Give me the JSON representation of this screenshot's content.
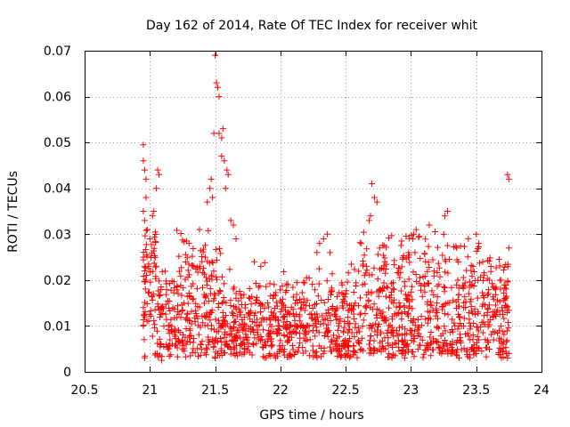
{
  "chart_data": {
    "type": "scatter",
    "title": "Day 162 of 2014, Rate Of TEC Index for receiver whit",
    "xlabel": "GPS time / hours",
    "ylabel": "ROTI / TECUs",
    "xlim": [
      20.5,
      24
    ],
    "ylim": [
      0,
      0.07
    ],
    "xticks": [
      20.5,
      21,
      21.5,
      22,
      22.5,
      23,
      23.5,
      24
    ],
    "xtick_labels": [
      "20.5",
      "21",
      "21.5",
      "22",
      "22.5",
      "23",
      "23.5",
      "24"
    ],
    "yticks": [
      0,
      0.01,
      0.02,
      0.03,
      0.04,
      0.05,
      0.06,
      0.07
    ],
    "ytick_labels": [
      "0",
      "0.01",
      "0.02",
      "0.03",
      "0.04",
      "0.05",
      "0.06",
      "0.07"
    ],
    "grid": true,
    "marker": "+",
    "color": "#ff0000",
    "series": [
      {
        "name": "ROTI",
        "x_range": [
          20.95,
          23.75
        ],
        "points": [
          [
            20.95,
            0.0495
          ],
          [
            20.95,
            0.046
          ],
          [
            20.96,
            0.044
          ],
          [
            20.97,
            0.042
          ],
          [
            20.97,
            0.038
          ],
          [
            20.95,
            0.035
          ],
          [
            20.96,
            0.033
          ],
          [
            20.98,
            0.031
          ],
          [
            21.0,
            0.029
          ],
          [
            21.02,
            0.034
          ],
          [
            21.03,
            0.035
          ],
          [
            20.95,
            0.025
          ],
          [
            20.96,
            0.022
          ],
          [
            20.97,
            0.02
          ],
          [
            20.99,
            0.023
          ],
          [
            20.95,
            0.014
          ],
          [
            20.95,
            0.01
          ],
          [
            20.96,
            0.012
          ],
          [
            21.06,
            0.044
          ],
          [
            21.07,
            0.043
          ],
          [
            21.05,
            0.04
          ],
          [
            21.09,
            0.0025
          ],
          [
            21.14,
            0.005
          ],
          [
            21.3,
            0.028
          ],
          [
            21.38,
            0.031
          ],
          [
            21.44,
            0.037
          ],
          [
            21.46,
            0.04
          ],
          [
            21.47,
            0.042
          ],
          [
            21.48,
            0.038
          ],
          [
            21.49,
            0.052
          ],
          [
            21.5,
            0.069
          ],
          [
            21.51,
            0.063
          ],
          [
            21.52,
            0.062
          ],
          [
            21.53,
            0.06
          ],
          [
            21.53,
            0.052
          ],
          [
            21.55,
            0.051
          ],
          [
            21.56,
            0.053
          ],
          [
            21.55,
            0.047
          ],
          [
            21.57,
            0.046
          ],
          [
            21.59,
            0.044
          ],
          [
            21.6,
            0.043
          ],
          [
            21.58,
            0.04
          ],
          [
            21.62,
            0.033
          ],
          [
            21.64,
            0.032
          ],
          [
            21.66,
            0.029
          ],
          [
            21.5,
            0.003
          ],
          [
            21.52,
            0.004
          ],
          [
            21.8,
            0.024
          ],
          [
            21.85,
            0.023
          ],
          [
            22.28,
            0.026
          ],
          [
            22.3,
            0.028
          ],
          [
            22.33,
            0.029
          ],
          [
            22.36,
            0.03
          ],
          [
            22.38,
            0.026
          ],
          [
            22.62,
            0.028
          ],
          [
            22.66,
            0.023
          ],
          [
            22.68,
            0.033
          ],
          [
            22.69,
            0.034
          ],
          [
            22.7,
            0.041
          ],
          [
            22.72,
            0.038
          ],
          [
            22.74,
            0.037
          ],
          [
            22.76,
            0.027
          ],
          [
            22.8,
            0.024
          ],
          [
            22.98,
            0.025
          ],
          [
            23.02,
            0.03
          ],
          [
            23.04,
            0.031
          ],
          [
            23.14,
            0.032
          ],
          [
            23.26,
            0.034
          ],
          [
            23.28,
            0.035
          ],
          [
            23.35,
            0.027
          ],
          [
            23.5,
            0.03
          ],
          [
            23.52,
            0.028
          ],
          [
            23.55,
            0.024
          ],
          [
            23.6,
            0.02
          ],
          [
            23.72,
            0.016
          ],
          [
            23.74,
            0.043
          ],
          [
            23.75,
            0.042
          ],
          [
            23.75,
            0.027
          ],
          [
            23.74,
            0.003
          ],
          [
            23.75,
            0.004
          ]
        ]
      }
    ]
  }
}
